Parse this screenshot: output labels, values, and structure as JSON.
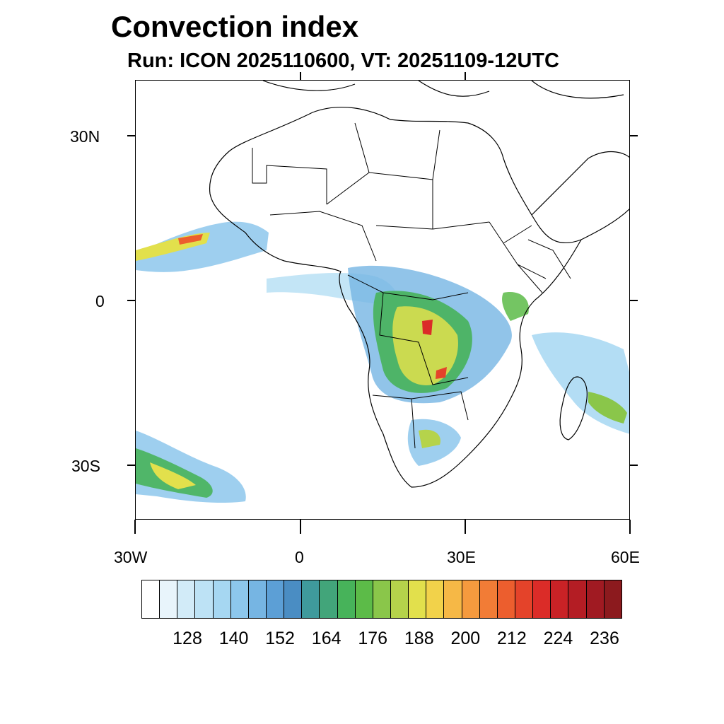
{
  "header": {
    "title": "Convection index",
    "subtitle": "Run: ICON 2025110600,  VT: 20251109-12UTC"
  },
  "map": {
    "lon_range": [
      -30,
      60
    ],
    "lat_range": [
      -40,
      40
    ],
    "lat_labels": [
      "30N",
      "0",
      "30S"
    ],
    "lon_labels": [
      "30W",
      "0",
      "30E",
      "60E"
    ]
  },
  "colorbar": {
    "colors": [
      "#ffffff",
      "#e8f4fb",
      "#d2ebf8",
      "#bde2f5",
      "#a6d7f2",
      "#8dc7ec",
      "#76b5e3",
      "#5c9fd6",
      "#4a8dc3",
      "#3f9a9c",
      "#42a57a",
      "#47b35a",
      "#5cbb48",
      "#8ac64a",
      "#b5d34b",
      "#e2e04c",
      "#f2d24a",
      "#f6b846",
      "#f59a3e",
      "#f27c36",
      "#ec5e2e",
      "#e4432a",
      "#db2c28",
      "#c92226",
      "#b41d24",
      "#a01a22",
      "#8c1a1e"
    ],
    "labels": [
      "128",
      "140",
      "152",
      "164",
      "176",
      "188",
      "200",
      "212",
      "224",
      "236"
    ]
  }
}
